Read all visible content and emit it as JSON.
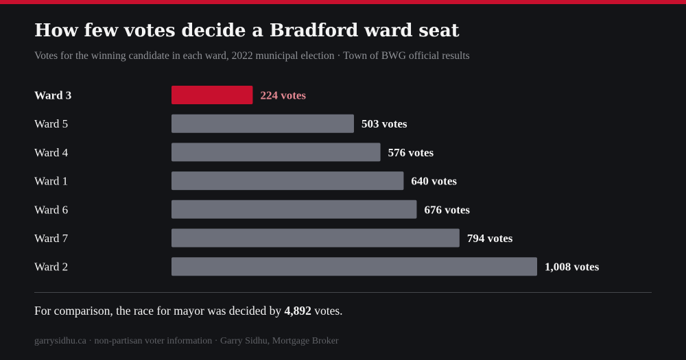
{
  "title": "How few votes decide a Bradford ward seat",
  "subtitle": "Votes for the winning candidate in each ward, 2022 municipal election · Town of BWG official results",
  "colors": {
    "highlight_bar": "#c8102e",
    "highlight_label": "#e38892",
    "bar": "#6c6f7a",
    "accent_bar": "#c8102e",
    "background": "#131417",
    "text": "#f4f4f4"
  },
  "chart_data": {
    "type": "bar",
    "orientation": "horizontal",
    "categories": [
      "Ward 3",
      "Ward 5",
      "Ward 4",
      "Ward 1",
      "Ward 6",
      "Ward 7",
      "Ward 2"
    ],
    "values": [
      224,
      503,
      576,
      640,
      676,
      794,
      1008
    ],
    "value_labels": [
      "224 votes",
      "503 votes",
      "576 votes",
      "640 votes",
      "676 votes",
      "794 votes",
      "1,008 votes"
    ],
    "highlight": "Ward 3",
    "title": "How few votes decide a Bradford ward seat",
    "subtitle": "Votes for the winning candidate in each ward, 2022 municipal election · Town of BWG official results",
    "xlabel": "",
    "ylabel": "",
    "xlim": [
      0,
      1008
    ],
    "grid": false,
    "legend": "none"
  },
  "footnote": {
    "before": "For comparison, the race for mayor was decided by ",
    "value": "4,892",
    "after": " votes."
  },
  "footer": "garrysidhu.ca · non-partisan voter information · Garry Sidhu, Mortgage Broker"
}
